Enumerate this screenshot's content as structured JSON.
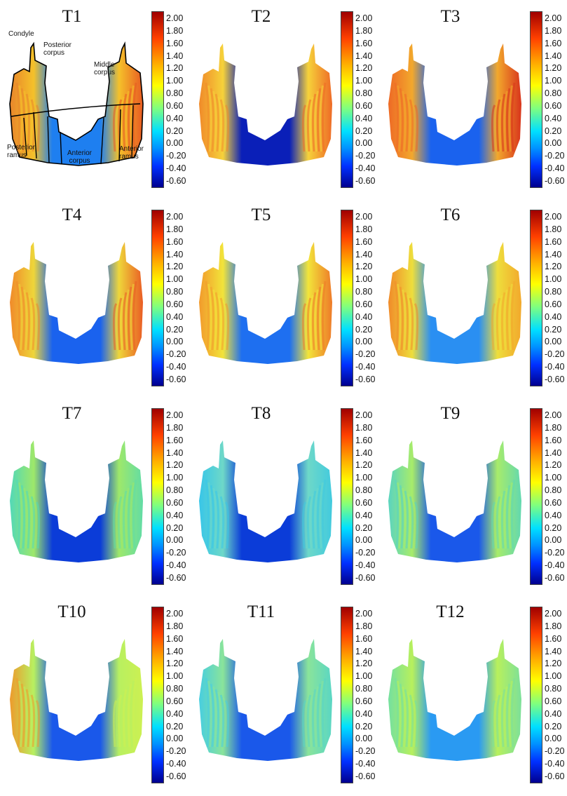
{
  "colorbar": {
    "ticks": [
      "2.00",
      "1.80",
      "1.60",
      "1.40",
      "1.20",
      "1.00",
      "0.80",
      "0.60",
      "0.40",
      "0.20",
      "0.00",
      "-0.20",
      "-0.40",
      "-0.60"
    ]
  },
  "regions": {
    "condyle": "Condyle",
    "posterior_corpus": "Posterior corpus",
    "middle_corpus": "Middle corpus",
    "posterior_ramus": "Posterior ramus",
    "anterior_corpus": "Anterior corpus",
    "anterior_ramus": "Anterior ramus"
  },
  "panels": [
    {
      "title": "T1",
      "left": "#e8852b",
      "mid": "#f5c12a",
      "right": "#e85a22",
      "body": "#1e7ff0"
    },
    {
      "title": "T2",
      "left": "#f08a2a",
      "mid": "#f6d23a",
      "right": "#ee6a26",
      "body": "#0a1fb8"
    },
    {
      "title": "T3",
      "left": "#ee6a26",
      "mid": "#f2a82c",
      "right": "#d8341c",
      "body": "#1a62ee"
    },
    {
      "title": "T4",
      "left": "#f08a2a",
      "mid": "#eed63a",
      "right": "#ea5c24",
      "body": "#1a62ee"
    },
    {
      "title": "T5",
      "left": "#f29a2c",
      "mid": "#f2e43a",
      "right": "#ee7a28",
      "body": "#1e6ff0"
    },
    {
      "title": "T6",
      "left": "#f08a2a",
      "mid": "#eede3c",
      "right": "#f2a82c",
      "body": "#2a8ff2"
    },
    {
      "title": "T7",
      "left": "#52d8b8",
      "mid": "#9ee86a",
      "right": "#62dca6",
      "body": "#0b3cd8"
    },
    {
      "title": "T8",
      "left": "#38c6e8",
      "mid": "#6ed8c8",
      "right": "#42cade",
      "body": "#0b3cd8"
    },
    {
      "title": "T9",
      "left": "#5ad4c0",
      "mid": "#a8ec6a",
      "right": "#62d8b0",
      "body": "#1a58ea"
    },
    {
      "title": "T10",
      "left": "#ee9a2c",
      "mid": "#b8f060",
      "right": "#cdf052",
      "body": "#1a58ea"
    },
    {
      "title": "T11",
      "left": "#48cee0",
      "mid": "#8ae49a",
      "right": "#5ad6c4",
      "body": "#1a58ea"
    },
    {
      "title": "T12",
      "left": "#74e0a0",
      "mid": "#b8f05c",
      "right": "#7ce09a",
      "body": "#2a9af2"
    }
  ]
}
